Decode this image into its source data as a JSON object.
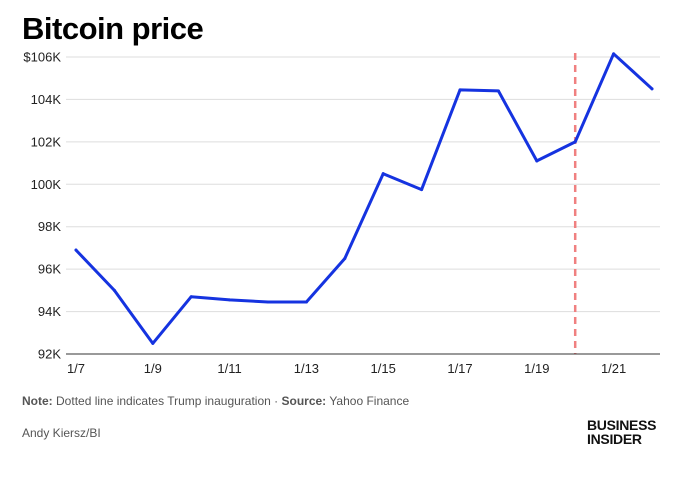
{
  "title": "Bitcoin price",
  "footer": {
    "note_label": "Note:",
    "note_text": "Dotted line indicates Trump inauguration",
    "separator": "·",
    "source_label": "Source:",
    "source_text": "Yahoo Finance",
    "credit": "Andy Kiersz/BI"
  },
  "logo": {
    "line1": "BUSINESS",
    "line2": "INSIDER"
  },
  "colors": {
    "line": "#1533e0",
    "marker": "#f08080",
    "grid": "#dddddd",
    "axis": "#333333"
  },
  "chart_data": {
    "type": "line",
    "title": "Bitcoin price",
    "xlabel": "",
    "ylabel": "",
    "x_tick_labels": [
      "1/7",
      "1/9",
      "1/11",
      "1/13",
      "1/15",
      "1/17",
      "1/19",
      "1/21"
    ],
    "y_tick_labels": [
      "92K",
      "94K",
      "96K",
      "98K",
      "100K",
      "102K",
      "104K",
      "$106K"
    ],
    "y_ticks": [
      92000,
      94000,
      96000,
      98000,
      100000,
      102000,
      104000,
      106000
    ],
    "ylim": [
      92000,
      106000
    ],
    "xlim": [
      7,
      22
    ],
    "grid": true,
    "series": [
      {
        "name": "Bitcoin price",
        "x": [
          7,
          8,
          9,
          10,
          11,
          12,
          13,
          14,
          15,
          16,
          17,
          18,
          19,
          20,
          21,
          22
        ],
        "values": [
          96900,
          95000,
          92500,
          94700,
          94550,
          94450,
          94450,
          96500,
          100500,
          99750,
          104450,
          104400,
          101100,
          102000,
          106150,
          104500
        ]
      }
    ],
    "vertical_marker": {
      "x": 20,
      "style": "dashed",
      "label": "Trump inauguration"
    }
  }
}
